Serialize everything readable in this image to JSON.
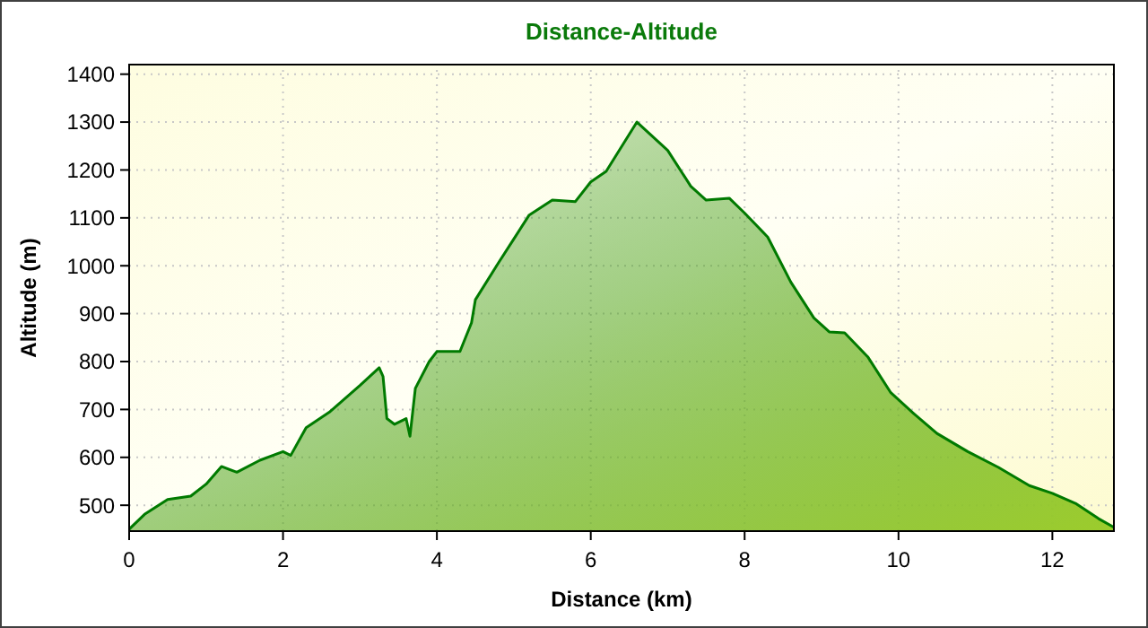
{
  "chart_data": {
    "type": "area",
    "title": "Distance-Altitude",
    "xlabel": "Distance (km)",
    "ylabel": "Altitude (m)",
    "x": [
      0,
      0.2,
      0.5,
      0.8,
      1.0,
      1.2,
      1.4,
      1.7,
      2.0,
      2.1,
      2.3,
      2.6,
      3.0,
      3.25,
      3.3,
      3.35,
      3.45,
      3.6,
      3.65,
      3.72,
      3.9,
      4.0,
      4.3,
      4.45,
      4.5,
      4.8,
      5.0,
      5.2,
      5.5,
      5.8,
      6.0,
      6.2,
      6.6,
      7.0,
      7.3,
      7.5,
      7.8,
      8.0,
      8.3,
      8.6,
      8.9,
      9.1,
      9.3,
      9.6,
      9.9,
      10.2,
      10.5,
      10.9,
      11.3,
      11.7,
      12.0,
      12.3,
      12.6,
      12.8
    ],
    "series": [
      {
        "color": "#007a00",
        "values": [
          450,
          481,
          512,
          519,
          544,
          581,
          569,
          594,
          612,
          604,
          662,
          694,
          750,
          787,
          769,
          681,
          669,
          681,
          644,
          744,
          800,
          821,
          821,
          881,
          929,
          1006,
          1056,
          1106,
          1137,
          1134,
          1175,
          1197,
          1300,
          1241,
          1166,
          1137,
          1141,
          1110,
          1060,
          966,
          891,
          862,
          860,
          810,
          735,
          691,
          650,
          612,
          579,
          541,
          525,
          504,
          472,
          454
        ]
      }
    ],
    "xlim": [
      0,
      12.8
    ],
    "xticks": [
      0,
      2,
      4,
      6,
      8,
      10,
      12
    ],
    "ylim": [
      446,
      1420
    ],
    "yticks": [
      500,
      600,
      700,
      800,
      900,
      1000,
      1100,
      1200,
      1300,
      1400
    ],
    "grid": true
  }
}
